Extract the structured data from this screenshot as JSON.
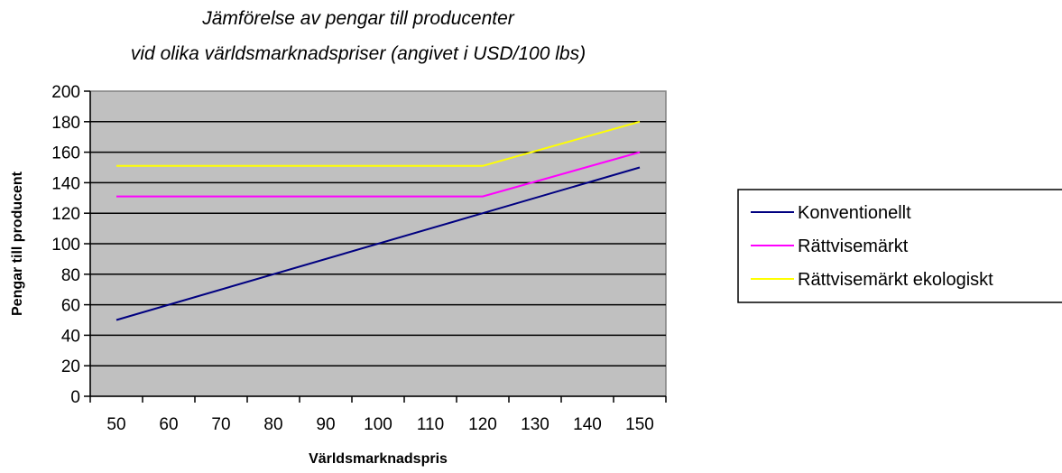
{
  "chart_data": {
    "type": "line",
    "title": "Jämförelse av pengar till producenter",
    "subtitle": "vid olika världsmarknadspriser (angivet i USD/100 lbs)",
    "xlabel": "Världsmarknadspris",
    "ylabel": "Pengar till producent",
    "x_ticks": [
      "50",
      "60",
      "70",
      "80",
      "90",
      "100",
      "110",
      "120",
      "130",
      "140",
      "150"
    ],
    "x": [
      50,
      120,
      150
    ],
    "ylim": [
      0,
      200
    ],
    "y_ticks": [
      "0",
      "20",
      "40",
      "60",
      "80",
      "100",
      "120",
      "140",
      "160",
      "180",
      "200"
    ],
    "grid": true,
    "plot_background": "#c0c0c0",
    "legend_position": "right",
    "series": [
      {
        "name": "Konventionellt",
        "color": "#000080",
        "values": [
          50,
          120,
          150
        ]
      },
      {
        "name": "Rättvisemärkt",
        "color": "#ff00ff",
        "values": [
          131,
          131,
          160
        ]
      },
      {
        "name": "Rättvisemärkt ekologiskt",
        "color": "#ffff00",
        "values": [
          151,
          151,
          180
        ]
      }
    ]
  }
}
